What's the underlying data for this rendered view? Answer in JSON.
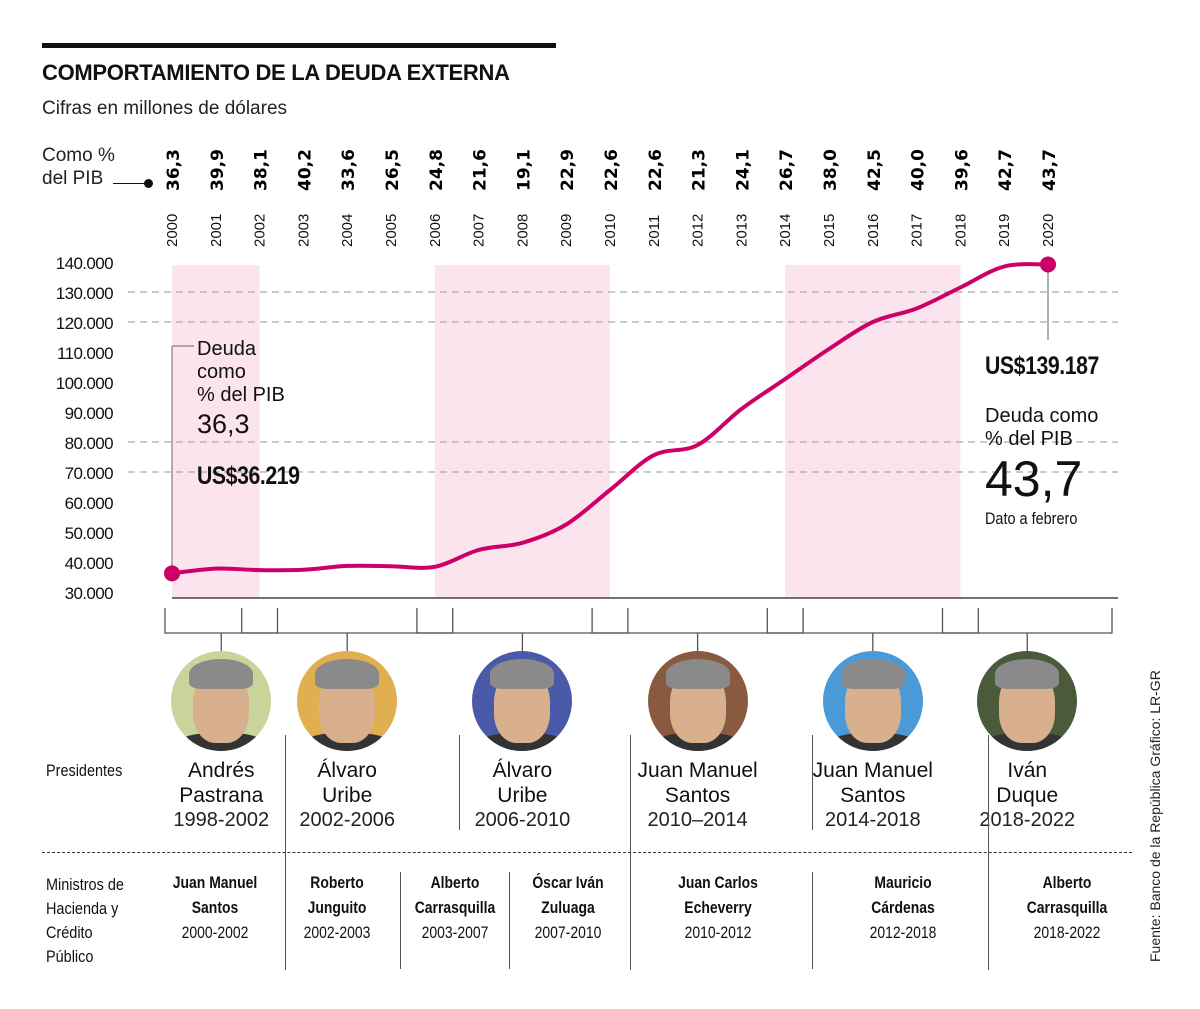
{
  "header": {
    "title": "COMPORTAMIENTO DE LA DEUDA EXTERNA",
    "subtitle": "Cifras en millones de dólares",
    "pib_label_line1": "Como %",
    "pib_label_line2": "del PIB"
  },
  "colors": {
    "line": "#cc0066",
    "band": "#fce4ee",
    "grid": "#aaaaaa",
    "axis": "#444444"
  },
  "chart_data": {
    "type": "line",
    "title": "COMPORTAMIENTO DE LA DEUDA EXTERNA",
    "subtitle": "Cifras en millones de dólares",
    "xlabel": "",
    "ylabel": "",
    "x": [
      2000,
      2001,
      2002,
      2003,
      2004,
      2005,
      2006,
      2007,
      2008,
      2009,
      2010,
      2011,
      2012,
      2013,
      2014,
      2015,
      2016,
      2017,
      2018,
      2019,
      2020
    ],
    "x_tick_labels": [
      "2000",
      "2001",
      "2002",
      "2003",
      "2004",
      "2005",
      "2006",
      "2007",
      "2008",
      "2009",
      "2010",
      "2011",
      "2012",
      "2013",
      "2014",
      "2015",
      "2016",
      "2017",
      "2018",
      "2019",
      "2020"
    ],
    "series": [
      {
        "name": "Deuda externa (millones US$)",
        "values": [
          36219,
          37800,
          37300,
          37400,
          38700,
          38600,
          38400,
          44000,
          46400,
          52500,
          64000,
          75600,
          79000,
          91000,
          101000,
          111000,
          120000,
          124500,
          131500,
          138500,
          139187
        ]
      },
      {
        "name": "Deuda como % del PIB",
        "values": [
          36.3,
          39.9,
          38.1,
          40.2,
          33.6,
          26.5,
          24.8,
          21.6,
          19.1,
          22.9,
          22.6,
          22.6,
          21.3,
          24.1,
          26.7,
          38.0,
          42.5,
          40.0,
          39.6,
          42.7,
          43.7
        ]
      }
    ],
    "pib_labels": [
      "36,3",
      "39,9",
      "38,1",
      "40,2",
      "33,6",
      "26,5",
      "24,8",
      "21,6",
      "19,1",
      "22,9",
      "22,6",
      "22,6",
      "21,3",
      "24,1",
      "26,7",
      "38,0",
      "42,5",
      "40,0",
      "39,6",
      "42,7",
      "43,7"
    ],
    "ylim": [
      30000,
      140000
    ],
    "y_ticks": [
      "140.000",
      "130.000",
      "120.000",
      "110.000",
      "100.000",
      "90.000",
      "80.000",
      "70.000",
      "60.000",
      "50.000",
      "40.000",
      "30.000"
    ],
    "y_tick_values": [
      140000,
      130000,
      120000,
      110000,
      100000,
      90000,
      80000,
      70000,
      60000,
      50000,
      40000,
      30000
    ],
    "gridlines_dashed_at": [
      130000,
      120000,
      80000,
      70000
    ],
    "shaded_periods": [
      [
        2000,
        2002
      ],
      [
        2006,
        2010
      ],
      [
        2014,
        2018
      ]
    ],
    "annotations": {
      "start": {
        "label_lines": [
          "Deuda",
          "como",
          "% del PIB"
        ],
        "pib": "36,3",
        "value": "US$36.219"
      },
      "end": {
        "value": "US$139.187",
        "label_lines": [
          "Deuda como",
          "% del PIB"
        ],
        "pib": "43,7",
        "note": "Dato a febrero"
      }
    },
    "grid": "partial-dashed",
    "legend": "none"
  },
  "presidents_label": "Presidentes",
  "presidents": [
    {
      "first": "Andrés",
      "last": "Pastrana",
      "years": "1998-2002",
      "photo_bg": "#c8d49a",
      "from": 2000,
      "to": 2002
    },
    {
      "first": "Álvaro",
      "last": "Uribe",
      "years": "2002-2006",
      "photo_bg": "#e0b050",
      "from": 2002,
      "to": 2006
    },
    {
      "first": "Álvaro",
      "last": "Uribe",
      "years": "2006-2010",
      "photo_bg": "#4a5aa8",
      "from": 2006,
      "to": 2010
    },
    {
      "first": "Juan Manuel",
      "last": "Santos",
      "years": "2010–2014",
      "photo_bg": "#8a5a40",
      "from": 2010,
      "to": 2014
    },
    {
      "first": "Juan Manuel",
      "last": "Santos",
      "years": "2014-2018",
      "photo_bg": "#4a9ad8",
      "from": 2014,
      "to": 2018
    },
    {
      "first": "Iván",
      "last": "Duque",
      "years": "2018-2022",
      "photo_bg": "#4a5a3a",
      "from": 2018,
      "to": 2020
    }
  ],
  "ministers_label": [
    "Ministros de",
    "Hacienda y",
    "Crédito",
    "Público"
  ],
  "ministers": [
    {
      "first": "Juan Manuel",
      "last": "Santos",
      "years": "2000-2002"
    },
    {
      "first": "Roberto",
      "last": "Junguito",
      "years": "2002-2003"
    },
    {
      "first": "Alberto",
      "last": "Carrasquilla",
      "years": "2003-2007"
    },
    {
      "first": "Óscar Iván",
      "last": "Zuluaga",
      "years": "2007-2010"
    },
    {
      "first": "Juan Carlos",
      "last": "Echeverry",
      "years": "2010-2012"
    },
    {
      "first": "Mauricio",
      "last": "Cárdenas",
      "years": "2012-2018"
    },
    {
      "first": "Alberto",
      "last": "Carrasquilla",
      "years": "2018-2022"
    }
  ],
  "source": "Fuente: Banco de la República   Gráfico: LR-GR"
}
